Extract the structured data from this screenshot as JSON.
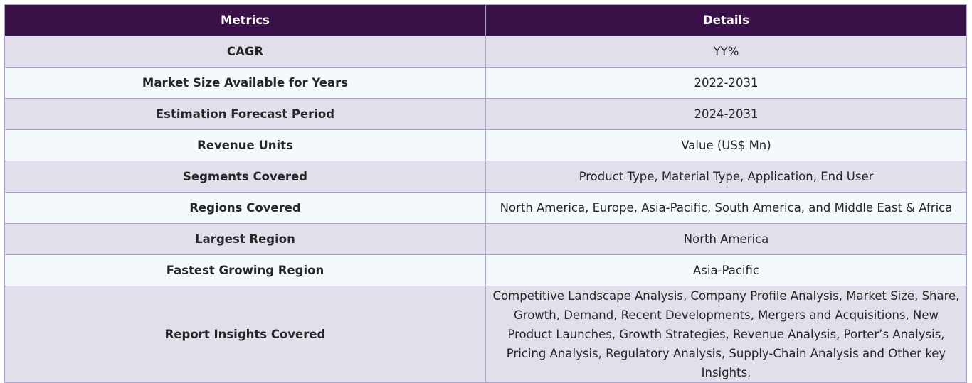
{
  "table": {
    "headers": [
      "Metrics",
      "Details"
    ],
    "rows": [
      {
        "metric": "CAGR",
        "detail": "YY%"
      },
      {
        "metric": "Market Size Available for Years",
        "detail": "2022-2031"
      },
      {
        "metric": "Estimation Forecast Period",
        "detail": "2024-2031"
      },
      {
        "metric": "Revenue Units",
        "detail": "Value (US$ Mn)"
      },
      {
        "metric": "Segments Covered",
        "detail": "Product Type, Material Type, Application, End User"
      },
      {
        "metric": "Regions Covered",
        "detail": "North America, Europe, Asia-Pacific, South America, and Middle East & Africa"
      },
      {
        "metric": "Largest Region",
        "detail": "North America"
      },
      {
        "metric": "Fastest Growing Region",
        "detail": "Asia-Pacific"
      },
      {
        "metric": "Report Insights Covered",
        "detail": "Competitive Landscape Analysis, Company Profile Analysis, Market Size, Share, Growth, Demand, Recent Developments, Mergers and Acquisitions, New Product Launches, Growth Strategies, Revenue Analysis, Porter’s Analysis, Pricing Analysis, Regulatory Analysis, Supply-Chain Analysis and Other key Insights."
      }
    ]
  },
  "colors": {
    "header_bg": "#3a1049",
    "header_text": "#ffffff",
    "row_odd": "#e2dfeb",
    "row_even": "#f4f9fc",
    "border": "#a9a6c4"
  }
}
